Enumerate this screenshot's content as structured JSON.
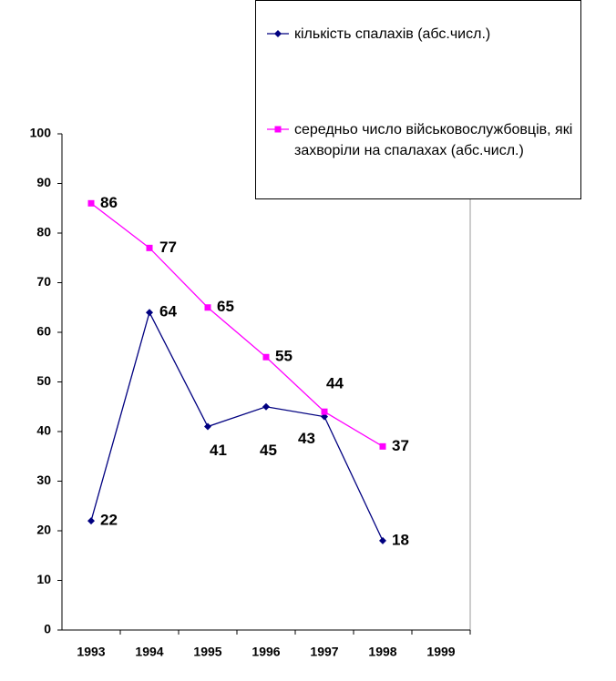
{
  "chart_data": {
    "type": "line",
    "categories": [
      "1993",
      "1994",
      "1995",
      "1996",
      "1997",
      "1998",
      "1999"
    ],
    "series": [
      {
        "name": "кількість спалахів (абс.числ.)",
        "color": "#000080",
        "marker": "diamond",
        "values": [
          22,
          64,
          41,
          45,
          43,
          18,
          null
        ]
      },
      {
        "name": "середньо число військовослужбовців, які захворіли на спалахах (абс.числ.)",
        "color": "#ff00ff",
        "marker": "square",
        "values": [
          86,
          77,
          65,
          55,
          44,
          37,
          null
        ]
      }
    ],
    "ylim": [
      0,
      100
    ],
    "yticks": [
      0,
      10,
      20,
      30,
      40,
      50,
      60,
      70,
      80,
      90,
      100
    ],
    "grid": false,
    "legend": "top-right"
  }
}
